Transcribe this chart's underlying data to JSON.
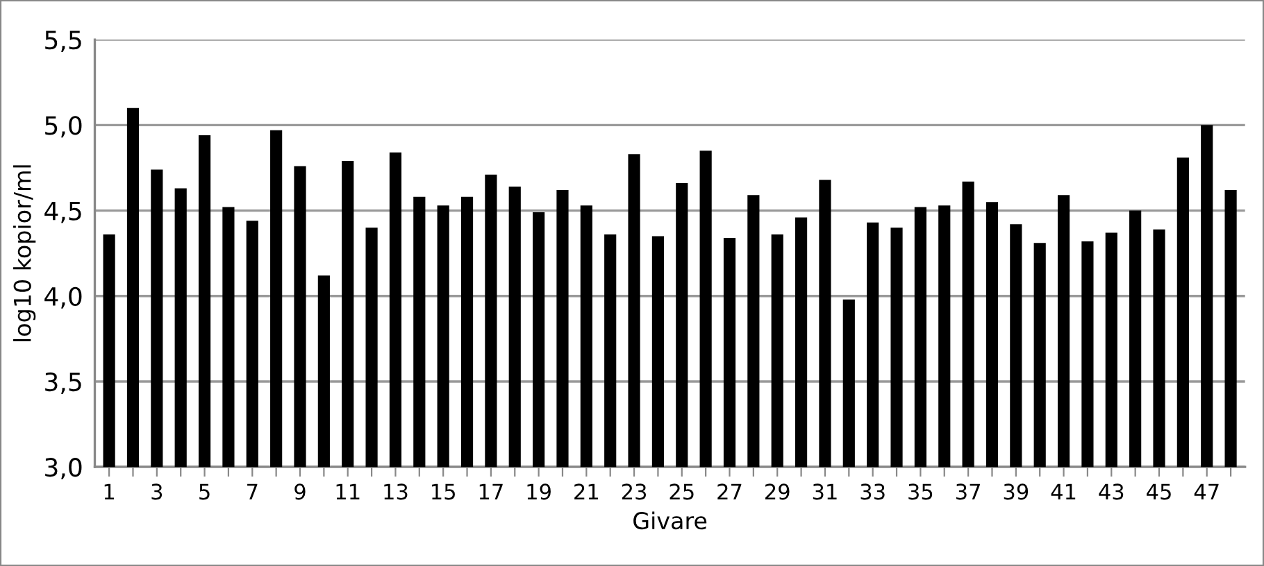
{
  "chart_data": {
    "type": "bar",
    "xlabel": "Givare",
    "ylabel": "log10 kopior/ml",
    "categories": [
      "1",
      null,
      "3",
      null,
      "5",
      null,
      "7",
      null,
      "9",
      null,
      "11",
      null,
      "13",
      null,
      "15",
      null,
      "17",
      null,
      "19",
      null,
      "21",
      null,
      "23",
      null,
      "25",
      null,
      "27",
      null,
      "29",
      null,
      "31",
      null,
      "33",
      null,
      "35",
      null,
      "37",
      null,
      "39",
      null,
      "41",
      null,
      "43",
      null,
      "45",
      null,
      "47",
      null
    ],
    "values": [
      4.36,
      5.1,
      4.74,
      4.63,
      4.94,
      4.52,
      4.44,
      4.97,
      4.76,
      4.12,
      4.79,
      4.4,
      4.84,
      4.58,
      4.53,
      4.58,
      4.71,
      4.64,
      4.49,
      4.62,
      4.53,
      4.36,
      4.83,
      4.35,
      4.66,
      4.85,
      4.34,
      4.59,
      4.36,
      4.46,
      4.68,
      3.98,
      4.43,
      4.4,
      4.52,
      4.53,
      4.67,
      4.55,
      4.42,
      4.31,
      4.59,
      4.32,
      4.37,
      4.5,
      4.39,
      4.81,
      5.0,
      4.62
    ],
    "color": "#000000",
    "ylim": [
      3.0,
      5.5
    ],
    "yticks": [
      {
        "value": 3.0,
        "label": "3,0"
      },
      {
        "value": 3.5,
        "label": "3,5"
      },
      {
        "value": 4.0,
        "label": "4,0"
      },
      {
        "value": 4.5,
        "label": "4,5"
      },
      {
        "value": 5.0,
        "label": "5,0"
      },
      {
        "value": 5.5,
        "label": "5,5"
      }
    ],
    "grid": "y",
    "legend": false
  }
}
